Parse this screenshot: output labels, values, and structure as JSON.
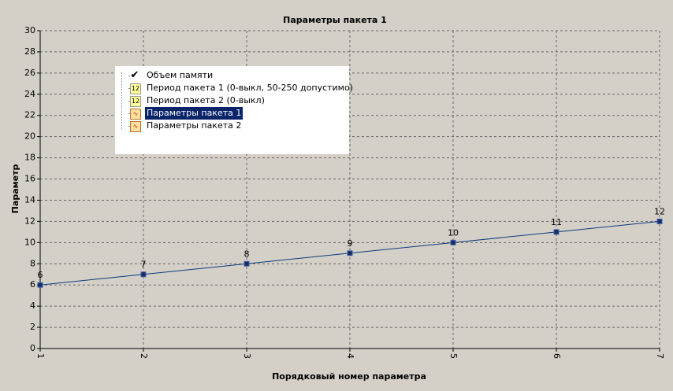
{
  "chart_data": {
    "type": "line",
    "title": "Параметры пакета 1",
    "x_label": "Порядковый номер параметра",
    "y_label": "Параметр",
    "x": [
      1,
      2,
      3,
      4,
      5,
      6,
      7
    ],
    "series": [
      {
        "name": "Параметры пакета 1",
        "color": "#0b3b7c",
        "values": [
          6,
          7,
          8,
          9,
          10,
          11,
          12
        ]
      }
    ],
    "xlim": [
      1,
      7
    ],
    "xticks": [
      1,
      2,
      3,
      4,
      5,
      6,
      7
    ],
    "ylim": [
      0,
      30
    ],
    "yticks": [
      0,
      2,
      4,
      6,
      8,
      10,
      12,
      14,
      16,
      18,
      20,
      22,
      24,
      26,
      28,
      30
    ],
    "grid": true,
    "data_labels": true
  },
  "tree": {
    "items": [
      "Объем памяти",
      "Период пакета 1 (0-выкл, 50-250 допустимо)",
      "Период пакета 2 (0-выкл)",
      "Параметры пакета 1",
      "Параметры пакета 2"
    ]
  }
}
